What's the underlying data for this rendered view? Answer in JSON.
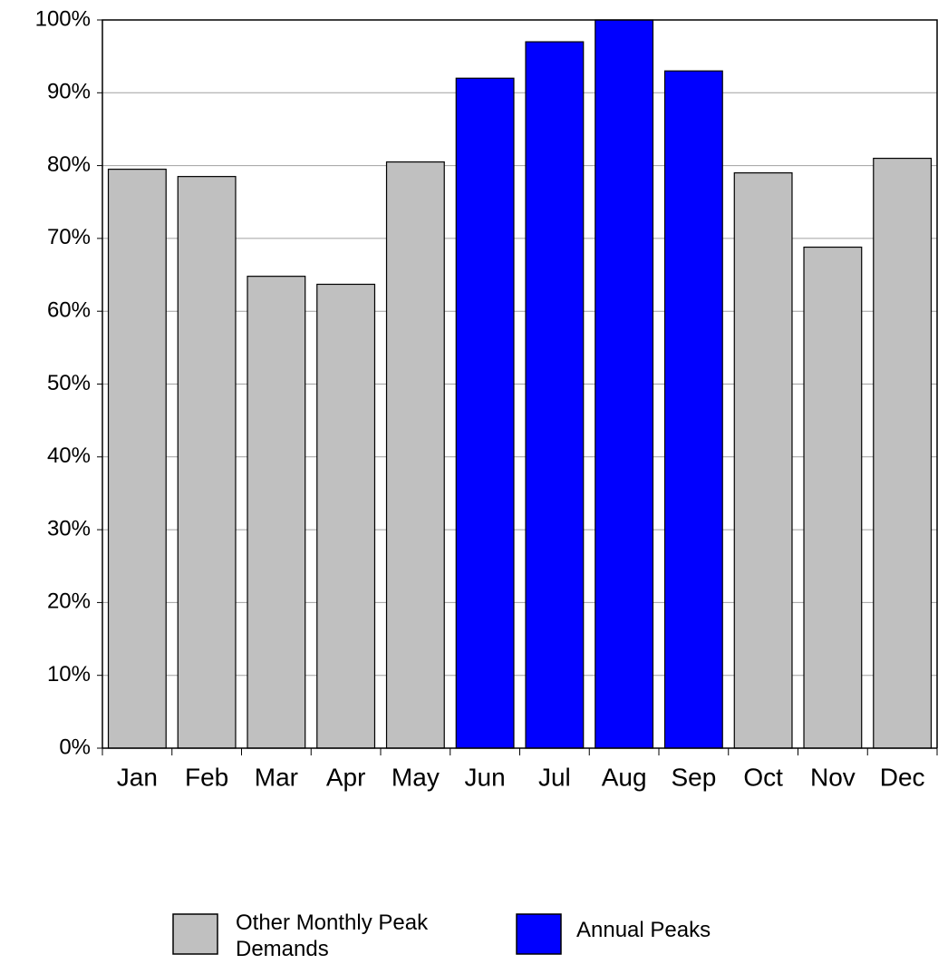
{
  "chart_data": {
    "type": "bar",
    "categories": [
      "Jan",
      "Feb",
      "Mar",
      "Apr",
      "May",
      "Jun",
      "Jul",
      "Aug",
      "Sep",
      "Oct",
      "Nov",
      "Dec"
    ],
    "series": [
      {
        "name": "Other Monthly Peak Demands",
        "color": "#c0c0c0",
        "values": [
          79.5,
          78.5,
          64.8,
          63.7,
          80.5,
          null,
          null,
          null,
          null,
          79,
          68.8,
          81
        ]
      },
      {
        "name": "Annual Peaks",
        "color": "#0000ff",
        "values": [
          null,
          null,
          null,
          null,
          null,
          92,
          97,
          100,
          93,
          null,
          null,
          null
        ]
      }
    ],
    "ylim": [
      0,
      100
    ],
    "yticks": [
      {
        "value": 0,
        "label": "0%"
      },
      {
        "value": 10,
        "label": "10%"
      },
      {
        "value": 20,
        "label": "20%"
      },
      {
        "value": 30,
        "label": "30%"
      },
      {
        "value": 40,
        "label": "40%"
      },
      {
        "value": 50,
        "label": "50%"
      },
      {
        "value": 60,
        "label": "60%"
      },
      {
        "value": 70,
        "label": "70%"
      },
      {
        "value": 80,
        "label": "80%"
      },
      {
        "value": 90,
        "label": "90%"
      },
      {
        "value": 100,
        "label": "100%"
      }
    ],
    "grid": true
  }
}
